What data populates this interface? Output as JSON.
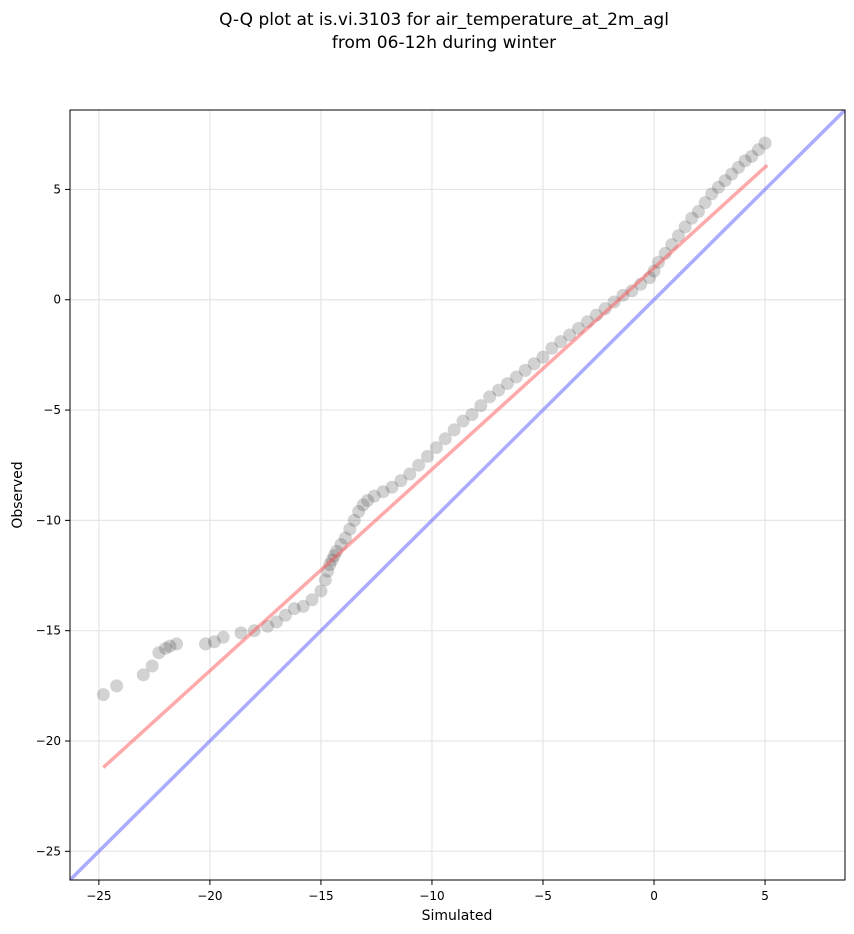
{
  "chart_data": {
    "type": "scatter",
    "title": "Q-Q plot at is.vi.3103 for air_temperature_at_2m_agl",
    "subtitle": "from 06-12h during winter",
    "xlabel": "Simulated",
    "ylabel": "Observed",
    "xlim": [
      -26.3,
      8.6
    ],
    "ylim": [
      -26.3,
      8.6
    ],
    "xticks": [
      -25,
      -20,
      -15,
      -10,
      -5,
      0,
      5
    ],
    "yticks": [
      -25,
      -20,
      -15,
      -10,
      -5,
      0,
      5
    ],
    "xtick_labels": [
      "−25",
      "−20",
      "−15",
      "−10",
      "−5",
      "0",
      "5"
    ],
    "ytick_labels": [
      "−25",
      "−20",
      "−15",
      "−10",
      "−5",
      "0",
      "5"
    ],
    "grid": true,
    "colors": {
      "points": "#333333",
      "fit_line": "#ff5555",
      "identity_line": "#6666ff",
      "grid": "#e6e6e6"
    },
    "series": [
      {
        "kind": "quantile_points",
        "x": [
          -24.8,
          -24.2,
          -23.0,
          -22.6,
          -22.3,
          -22.0,
          -21.8,
          -21.5,
          -20.2,
          -19.8,
          -19.4,
          -18.6,
          -18.0,
          -17.4,
          -17.0,
          -16.6,
          -16.2,
          -15.8,
          -15.4,
          -15.0,
          -14.8,
          -14.7,
          -14.6,
          -14.5,
          -14.4,
          -14.3,
          -14.1,
          -13.9,
          -13.7,
          -13.5,
          -13.3,
          -13.1,
          -12.9,
          -12.6,
          -12.2,
          -11.8,
          -11.4,
          -11.0,
          -10.6,
          -10.2,
          -9.8,
          -9.4,
          -9.0,
          -8.6,
          -8.2,
          -7.8,
          -7.4,
          -7.0,
          -6.6,
          -6.2,
          -5.8,
          -5.4,
          -5.0,
          -4.6,
          -4.2,
          -3.8,
          -3.4,
          -3.0,
          -2.6,
          -2.2,
          -1.8,
          -1.4,
          -1.0,
          -0.6,
          -0.2,
          0.0,
          0.2,
          0.5,
          0.8,
          1.1,
          1.4,
          1.7,
          2.0,
          2.3,
          2.6,
          2.9,
          3.2,
          3.5,
          3.8,
          4.1,
          4.4,
          4.7,
          5.0
        ],
        "y": [
          -17.9,
          -17.5,
          -17.0,
          -16.6,
          -16.0,
          -15.8,
          -15.7,
          -15.6,
          -15.6,
          -15.5,
          -15.3,
          -15.1,
          -15.0,
          -14.8,
          -14.6,
          -14.3,
          -14.0,
          -13.9,
          -13.6,
          -13.2,
          -12.7,
          -12.3,
          -12.0,
          -11.8,
          -11.6,
          -11.4,
          -11.1,
          -10.8,
          -10.4,
          -10.0,
          -9.6,
          -9.3,
          -9.1,
          -8.9,
          -8.7,
          -8.5,
          -8.2,
          -7.9,
          -7.5,
          -7.1,
          -6.7,
          -6.3,
          -5.9,
          -5.5,
          -5.2,
          -4.8,
          -4.4,
          -4.1,
          -3.8,
          -3.5,
          -3.2,
          -2.9,
          -2.6,
          -2.2,
          -1.9,
          -1.6,
          -1.3,
          -1.0,
          -0.7,
          -0.4,
          -0.1,
          0.2,
          0.4,
          0.7,
          1.0,
          1.3,
          1.7,
          2.1,
          2.5,
          2.9,
          3.3,
          3.7,
          4.0,
          4.4,
          4.8,
          5.1,
          5.4,
          5.7,
          6.0,
          6.3,
          6.5,
          6.8,
          7.1
        ]
      },
      {
        "kind": "fit_line",
        "x": [
          -24.8,
          5.1
        ],
        "y": [
          -21.2,
          6.1
        ]
      },
      {
        "kind": "identity_line",
        "x": [
          -26.3,
          8.6
        ],
        "y": [
          -26.3,
          8.6
        ]
      }
    ]
  }
}
